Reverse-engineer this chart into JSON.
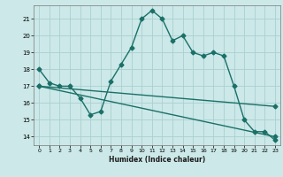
{
  "title": "",
  "xlabel": "Humidex (Indice chaleur)",
  "ylabel": "",
  "bg_color": "#cce8e8",
  "grid_color": "#aad0d0",
  "line_color": "#1a7068",
  "xlim": [
    -0.5,
    23.5
  ],
  "ylim": [
    13.5,
    21.8
  ],
  "yticks": [
    14,
    15,
    16,
    17,
    18,
    19,
    20,
    21
  ],
  "xticks": [
    0,
    1,
    2,
    3,
    4,
    5,
    6,
    7,
    8,
    9,
    10,
    11,
    12,
    13,
    14,
    15,
    16,
    17,
    18,
    19,
    20,
    21,
    22,
    23
  ],
  "line1_x": [
    0,
    1,
    2,
    3,
    4,
    5,
    6,
    7,
    8,
    9,
    10,
    11,
    12,
    13,
    14,
    15,
    16,
    17,
    18,
    19,
    20,
    21,
    22,
    23
  ],
  "line1_y": [
    18.0,
    17.2,
    17.0,
    17.0,
    16.3,
    15.3,
    15.5,
    17.3,
    18.3,
    19.3,
    21.0,
    21.5,
    21.0,
    19.7,
    20.0,
    19.0,
    18.8,
    19.0,
    18.8,
    17.0,
    15.0,
    14.3,
    14.3,
    13.8
  ],
  "line2_x": [
    0,
    23
  ],
  "line2_y": [
    17.0,
    15.8
  ],
  "line3_x": [
    0,
    23
  ],
  "line3_y": [
    17.0,
    14.0
  ],
  "marker": "D",
  "markersize": 2.5,
  "linewidth": 1.0
}
